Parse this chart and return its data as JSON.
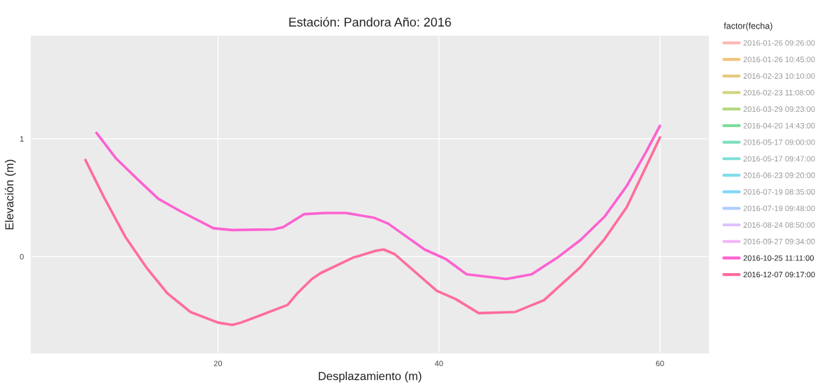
{
  "chart_data": {
    "type": "line",
    "title": "Estación: Pandora Año: 2016",
    "xlabel": "Desplazamiento (m)",
    "ylabel": "Elevación (m)",
    "legend_title": "factor(fecha)",
    "xlim": [
      3.1,
      64.4
    ],
    "ylim": [
      -0.82,
      1.87
    ],
    "xticks": [
      20,
      40,
      60
    ],
    "yticks": [
      0,
      1
    ],
    "grid": true,
    "legend": "right",
    "series": [
      {
        "name": "2016-01-26 09:26:00",
        "color": "#f8766d"
      },
      {
        "name": "2016-01-26 10:45:00",
        "color": "#e58700"
      },
      {
        "name": "2016-02-23 10:10:00",
        "color": "#c99800"
      },
      {
        "name": "2016-02-23 11:08:00",
        "color": "#a3a500"
      },
      {
        "name": "2016-03-29 09:23:00",
        "color": "#6bb100"
      },
      {
        "name": "2016-04-20 14:43:00",
        "color": "#00ba38"
      },
      {
        "name": "2016-05-17 09:00:00",
        "color": "#00bf7d"
      },
      {
        "name": "2016-05-17 09:47:00",
        "color": "#00c0af"
      },
      {
        "name": "2016-06-23 09:20:00",
        "color": "#00bcd8"
      },
      {
        "name": "2016-07-19 08:35:00",
        "color": "#00b0f6"
      },
      {
        "name": "2016-07-19 09:48:00",
        "color": "#619cff"
      },
      {
        "name": "2016-08-24 08:50:00",
        "color": "#b983ff"
      },
      {
        "name": "2016-09-27 09:34:00",
        "color": "#e76bf3"
      },
      {
        "name": "2016-10-25 11:11:00",
        "color": "#fd61d1",
        "x": [
          9.0,
          10.8,
          12.9,
          14.6,
          16.7,
          19.6,
          21.3,
          25.0,
          25.9,
          27.8,
          29.7,
          31.6,
          34.1,
          35.4,
          38.7,
          40.6,
          42.5,
          46.1,
          48.4,
          50.7,
          52.8,
          55.0,
          57.0,
          58.7,
          60.0
        ],
        "values": [
          1.05,
          0.83,
          0.64,
          0.49,
          0.38,
          0.24,
          0.225,
          0.23,
          0.25,
          0.36,
          0.37,
          0.37,
          0.33,
          0.28,
          0.06,
          -0.02,
          -0.15,
          -0.19,
          -0.15,
          -0.01,
          0.14,
          0.34,
          0.6,
          0.88,
          1.11
        ]
      },
      {
        "name": "2016-12-07 09:17:00",
        "color": "#ff6c9b",
        "x": [
          8.0,
          9.7,
          11.6,
          13.5,
          15.4,
          17.5,
          20.0,
          21.3,
          22.1,
          23.8,
          26.3,
          27.2,
          28.5,
          29.3,
          32.2,
          34.3,
          35.0,
          36.0,
          39.8,
          41.5,
          43.6,
          46.9,
          49.5,
          52.8,
          55.0,
          57.0,
          60.0
        ],
        "values": [
          0.82,
          0.5,
          0.17,
          -0.09,
          -0.31,
          -0.47,
          -0.56,
          -0.58,
          -0.56,
          -0.5,
          -0.41,
          -0.31,
          -0.19,
          -0.14,
          -0.01,
          0.05,
          0.06,
          0.02,
          -0.29,
          -0.36,
          -0.48,
          -0.47,
          -0.37,
          -0.09,
          0.15,
          0.42,
          1.01
        ]
      }
    ]
  }
}
